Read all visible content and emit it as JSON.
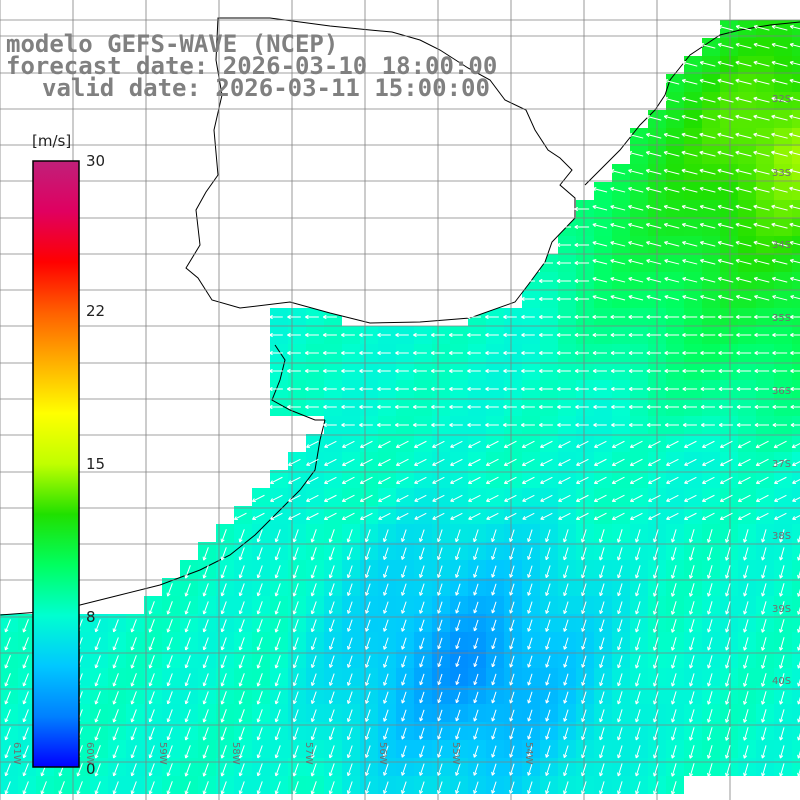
{
  "title": {
    "line1": "modelo GEFS-WAVE (NCEP)",
    "line2": "forecast date: 2026-03-10 18:00:00",
    "line3": "valid date: 2026-03-11 15:00:00"
  },
  "colorbar": {
    "units": "[m/s]",
    "min": 0,
    "max": 30,
    "ticks": [
      "30",
      "22",
      "15",
      "8",
      "0"
    ],
    "tick_values": [
      30,
      22,
      15,
      8,
      0
    ],
    "colors": [
      "#0000ff",
      "#0080ff",
      "#00c8ff",
      "#00ffd0",
      "#00ff60",
      "#20e000",
      "#c0ff00",
      "#ffff00",
      "#ffb000",
      "#ff6000",
      "#ff0000",
      "#e00060",
      "#c0207a"
    ]
  },
  "map": {
    "variable": "wind speed",
    "lat_labels": [
      "32S",
      "33S",
      "34S",
      "35S",
      "36S",
      "37S",
      "38S",
      "39S",
      "40S"
    ],
    "lon_labels": [
      "61W",
      "60W",
      "59W",
      "58W",
      "57W",
      "56W",
      "55W",
      "54W"
    ],
    "land_color": "#ffffff",
    "grid_color": "#808080",
    "coast_color": "#000000",
    "arrow_color": "#ffffff"
  }
}
